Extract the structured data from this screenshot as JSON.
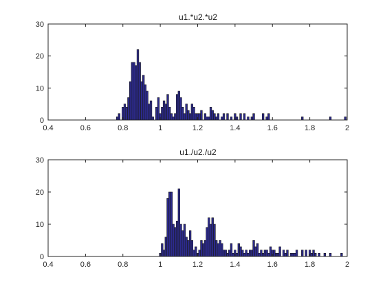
{
  "chart_data": [
    {
      "type": "bar",
      "title": "u1.*u2.*u2",
      "xlim": [
        0.4,
        2
      ],
      "ylim": [
        0,
        30
      ],
      "xticks": [
        "0.4",
        "0.6",
        "0.8",
        "1",
        "1.2",
        "1.4",
        "1.6",
        "1.8",
        "2"
      ],
      "yticks": [
        "0",
        "10",
        "20",
        "30"
      ],
      "bin_width": 0.01,
      "x": [
        0.77,
        0.78,
        0.79,
        0.8,
        0.81,
        0.82,
        0.83,
        0.84,
        0.85,
        0.86,
        0.87,
        0.88,
        0.89,
        0.9,
        0.91,
        0.92,
        0.93,
        0.94,
        0.95,
        0.96,
        0.97,
        0.98,
        0.99,
        1.0,
        1.01,
        1.02,
        1.03,
        1.04,
        1.05,
        1.06,
        1.07,
        1.08,
        1.09,
        1.1,
        1.11,
        1.12,
        1.13,
        1.14,
        1.15,
        1.16,
        1.17,
        1.18,
        1.19,
        1.2,
        1.21,
        1.22,
        1.24,
        1.25,
        1.26,
        1.27,
        1.28,
        1.29,
        1.3,
        1.31,
        1.33,
        1.34,
        1.36,
        1.38,
        1.4,
        1.41,
        1.43,
        1.45,
        1.47,
        1.49,
        1.5,
        1.55,
        1.57,
        1.58,
        1.76,
        1.91,
        1.99
      ],
      "values": [
        1,
        2,
        0,
        4,
        5,
        4,
        7,
        12,
        18,
        18,
        17,
        22,
        18,
        12,
        14,
        11,
        9,
        5,
        6,
        1,
        0,
        4,
        7,
        2,
        4,
        6,
        5,
        8,
        4,
        2,
        1,
        2,
        8,
        9,
        7,
        4,
        2,
        5,
        3,
        2,
        5,
        4,
        2,
        2,
        2,
        3,
        2,
        1,
        1,
        4,
        3,
        2,
        1,
        2,
        1,
        2,
        2,
        1,
        2,
        1,
        2,
        2,
        1,
        1,
        2,
        2,
        1,
        2,
        1,
        1,
        1
      ]
    },
    {
      "type": "bar",
      "title": "u1./u2./u2",
      "xlim": [
        0.4,
        2
      ],
      "ylim": [
        0,
        30
      ],
      "xticks": [
        "0.4",
        "0.6",
        "0.8",
        "1",
        "1.2",
        "1.4",
        "1.6",
        "1.8",
        "2"
      ],
      "yticks": [
        "0",
        "10",
        "20",
        "30"
      ],
      "bin_width": 0.01,
      "x": [
        1.0,
        1.01,
        1.02,
        1.03,
        1.04,
        1.05,
        1.06,
        1.07,
        1.08,
        1.09,
        1.1,
        1.11,
        1.12,
        1.13,
        1.14,
        1.15,
        1.16,
        1.17,
        1.18,
        1.19,
        1.2,
        1.21,
        1.22,
        1.23,
        1.24,
        1.25,
        1.26,
        1.27,
        1.28,
        1.29,
        1.3,
        1.31,
        1.32,
        1.33,
        1.34,
        1.35,
        1.36,
        1.37,
        1.38,
        1.39,
        1.4,
        1.41,
        1.42,
        1.43,
        1.44,
        1.45,
        1.46,
        1.47,
        1.48,
        1.49,
        1.5,
        1.51,
        1.52,
        1.53,
        1.54,
        1.55,
        1.56,
        1.57,
        1.58,
        1.59,
        1.6,
        1.61,
        1.62,
        1.63,
        1.64,
        1.66,
        1.67,
        1.68,
        1.7,
        1.71,
        1.72,
        1.73,
        1.76,
        1.78,
        1.8,
        1.81,
        1.82,
        1.83,
        1.85,
        1.88,
        1.91,
        1.97
      ],
      "values": [
        1,
        4,
        2,
        6,
        18,
        20,
        20,
        10,
        9,
        11,
        21,
        10,
        8,
        10,
        6,
        5,
        8,
        5,
        2,
        3,
        1,
        2,
        5,
        4,
        5,
        9,
        12,
        10,
        12,
        10,
        5,
        4,
        5,
        4,
        2,
        2,
        1,
        2,
        4,
        1,
        2,
        1,
        4,
        3,
        2,
        1,
        2,
        1,
        2,
        2,
        5,
        3,
        4,
        1,
        2,
        1,
        2,
        2,
        1,
        3,
        2,
        2,
        1,
        1,
        3,
        2,
        1,
        2,
        1,
        1,
        1,
        2,
        2,
        2,
        2,
        1,
        2,
        1,
        1,
        1,
        1,
        1
      ]
    }
  ]
}
